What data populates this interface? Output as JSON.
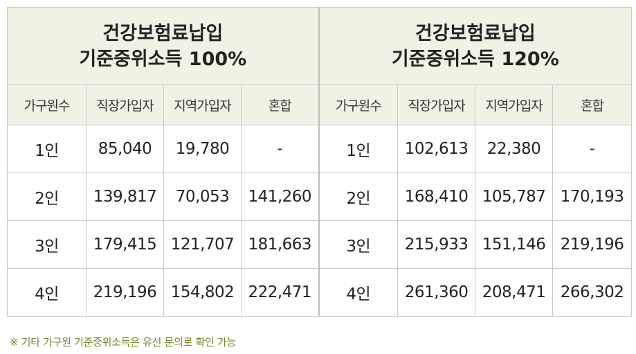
{
  "groups": [
    {
      "title_line1": "건강보험료납입",
      "title_line2": "기준중위소득 100%",
      "columns": [
        "가구원수",
        "직장가입자",
        "지역가입자",
        "혼합"
      ],
      "rows": [
        [
          "1인",
          "85,040",
          "19,780",
          "-"
        ],
        [
          "2인",
          "139,817",
          "70,053",
          "141,260"
        ],
        [
          "3인",
          "179,415",
          "121,707",
          "181,663"
        ],
        [
          "4인",
          "219,196",
          "154,802",
          "222,471"
        ]
      ]
    },
    {
      "title_line1": "건강보험료납입",
      "title_line2": "기준중위소득 120%",
      "columns": [
        "가구원수",
        "직장가입자",
        "지역가입자",
        "혼합"
      ],
      "rows": [
        [
          "1인",
          "102,613",
          "22,380",
          "-"
        ],
        [
          "2인",
          "168,410",
          "105,787",
          "170,193"
        ],
        [
          "3인",
          "215,933",
          "151,146",
          "219,196"
        ],
        [
          "4인",
          "261,360",
          "208,471",
          "266,302"
        ]
      ]
    }
  ],
  "footnote": "※ 기타 가구원 기준중위소득은 유선 문의로 확인 가능",
  "colors": {
    "header_bg": "#f0f2e4",
    "border": "#c9c9c9",
    "footnote": "#6f8a2d"
  }
}
